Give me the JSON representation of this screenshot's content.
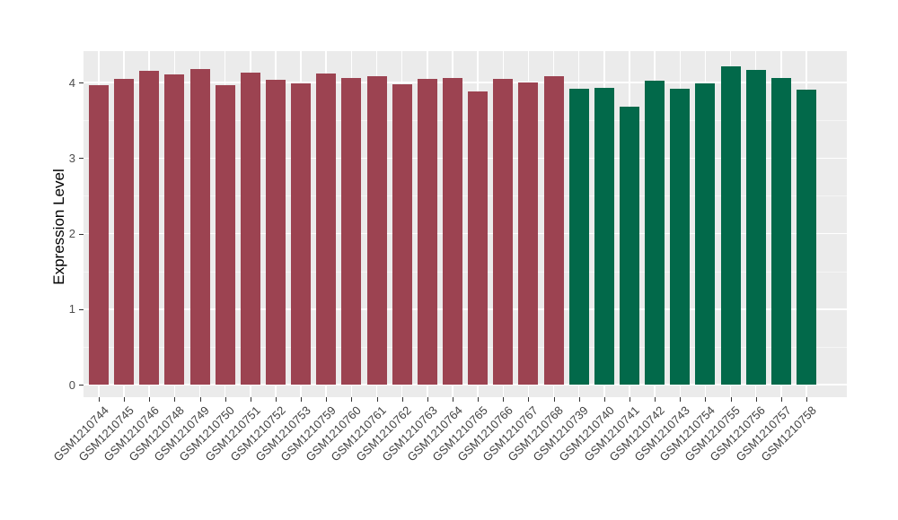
{
  "chart_data": {
    "type": "bar",
    "title": "",
    "xlabel": "",
    "ylabel": "Expression Level",
    "categories": [
      "GSM1210744",
      "GSM1210745",
      "GSM1210746",
      "GSM1210748",
      "GSM1210749",
      "GSM1210750",
      "GSM1210751",
      "GSM1210752",
      "GSM1210753",
      "GSM1210759",
      "GSM1210760",
      "GSM1210761",
      "GSM1210762",
      "GSM1210763",
      "GSM1210764",
      "GSM1210765",
      "GSM1210766",
      "GSM1210767",
      "GSM1210768",
      "GSM1210739",
      "GSM1210740",
      "GSM1210741",
      "GSM1210742",
      "GSM1210743",
      "GSM1210754",
      "GSM1210755",
      "GSM1210756",
      "GSM1210757",
      "GSM1210758"
    ],
    "values": [
      3.96,
      4.05,
      4.16,
      4.11,
      4.18,
      3.96,
      4.13,
      4.04,
      3.99,
      4.12,
      4.06,
      4.08,
      3.98,
      4.05,
      4.06,
      3.88,
      4.05,
      4.0,
      4.08,
      3.92,
      3.93,
      3.68,
      4.03,
      3.92,
      3.99,
      4.22,
      4.17,
      4.06,
      3.9
    ],
    "groups": [
      0,
      0,
      0,
      0,
      0,
      0,
      0,
      0,
      0,
      0,
      0,
      0,
      0,
      0,
      0,
      0,
      0,
      0,
      0,
      1,
      1,
      1,
      1,
      1,
      1,
      1,
      1,
      1,
      1
    ],
    "group_colors": [
      "#9c4351",
      "#02694a"
    ],
    "ytick_labels": [
      "0",
      "1",
      "2",
      "3",
      "4"
    ],
    "yticks": [
      0,
      1,
      2,
      3,
      4
    ],
    "minor_yticks": [
      0.5,
      1.5,
      2.5,
      3.5
    ],
    "ylim": [
      -0.17,
      4.42
    ],
    "grid": "on",
    "legend": "none",
    "panel_background": "#ebebeb",
    "grid_major_color": "#ffffff",
    "grid_minor_color": "#f5f5f5",
    "tick_mark_color": "#333333"
  }
}
